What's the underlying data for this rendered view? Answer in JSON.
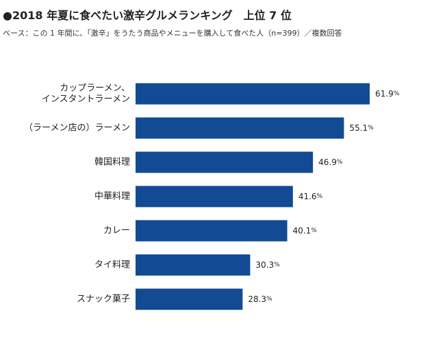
{
  "chart_data": {
    "type": "bar",
    "orientation": "horizontal",
    "title": "●2018 年夏に食べたい激辛グルメランキング　上位 7 位",
    "subtitle": "ベース：この 1 年間に、「激辛」をうたう商品やメニューを購入して食べた人（n=399）／複数回答",
    "categories": [
      [
        "カップラーメン、",
        "インスタントラーメン"
      ],
      [
        "（ラーメン店の）ラーメン"
      ],
      [
        "韓国料理"
      ],
      [
        "中華料理"
      ],
      [
        "カレー"
      ],
      [
        "タイ料理"
      ],
      [
        "スナック菓子"
      ]
    ],
    "values": [
      61.9,
      55.1,
      46.9,
      41.6,
      40.1,
      30.3,
      28.3
    ],
    "unit": "%",
    "bar_color": "#124b94",
    "xlim": [
      0,
      70
    ],
    "grid": false,
    "legend": "none"
  }
}
